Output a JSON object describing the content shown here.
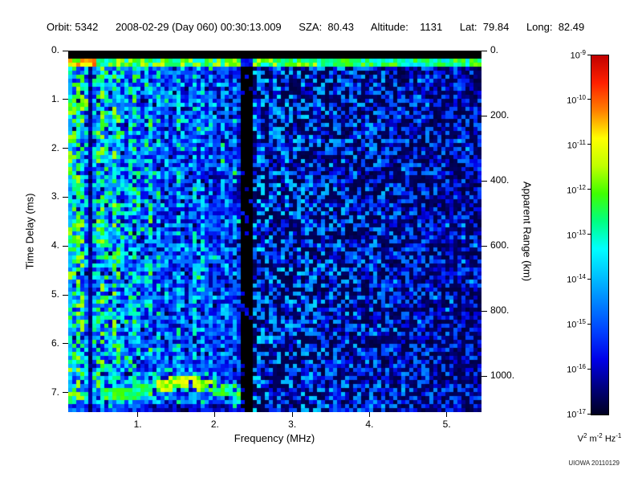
{
  "header": {
    "segments": [
      "Orbit: 5342",
      "2008-02-29 (Day 060) 00:30:13.009",
      "SZA:  80.43",
      "Altitude:    1131",
      "Lat:  79.84",
      "Long:  82.49"
    ]
  },
  "chart_data": {
    "type": "heatmap",
    "title": "",
    "description": "Radar sounder ionogram: spectral density vs frequency (0.1-5.45 MHz) and time delay (0-7.4 ms). Dense blue-cyan noise below ~2.3 MHz, sparse dark-blue speckle on black above 2.5 MHz, bright transmit-pulse line near 0.25 ms across all frequencies, cyan ionospheric echo patch near 0.2 MHz / 1.1 ms, surface reflection trace near 6.8-7.1 ms between 0.5 and 2.3 MHz, black interference gap band near 2.4 MHz, dark column near 0.4 MHz.",
    "xlabel": "Frequency (MHz)",
    "ylabel_left": "Time Delay (ms)",
    "ylabel_right": "Apparent Range (km)",
    "x_range": [
      0.1,
      5.45
    ],
    "x_tick_values": [
      1,
      2,
      3,
      4,
      5
    ],
    "x_tick_labels": [
      "1.",
      "2.",
      "3.",
      "4.",
      "5."
    ],
    "y_range": [
      0,
      7.4
    ],
    "y_tick_values": [
      0,
      1,
      2,
      3,
      4,
      5,
      6,
      7
    ],
    "y_tick_labels": [
      "0.",
      "1.",
      "2.",
      "3.",
      "4.",
      "5.",
      "6.",
      "7."
    ],
    "right_axis": {
      "km_per_ms": 150,
      "tick_values": [
        0,
        200,
        400,
        600,
        800,
        1000
      ],
      "tick_labels": [
        "0.",
        "200.",
        "400.",
        "600.",
        "800.",
        "1000."
      ]
    },
    "colorbar": {
      "scale": "log",
      "top_value": "1e-9",
      "bottom_value": "1e-17",
      "tick_base": "10",
      "tick_exponents": [
        "-9",
        "-10",
        "-11",
        "-12",
        "-13",
        "-14",
        "-15",
        "-16",
        "-17"
      ],
      "unit_parts": [
        [
          "V",
          "2"
        ],
        [
          "m",
          "-2"
        ],
        [
          "Hz",
          "-1"
        ]
      ]
    },
    "colormap": [
      "#000020",
      "#000080",
      "#0000e8",
      "#0040ff",
      "#0080ff",
      "#00c0ff",
      "#00ffff",
      "#00ff80",
      "#40ff00",
      "#c0ff00",
      "#ffff00",
      "#ff8000",
      "#ff2000",
      "#c00000"
    ],
    "features": {
      "transmit_pulse_line": {
        "time_range_ms": [
          0.16,
          0.34
        ]
      },
      "interference_gap_band_mhz": [
        2.33,
        2.47
      ],
      "dark_column_mhz": [
        0.35,
        0.43
      ],
      "ionospheric_echo_patch": {
        "freq_range_mhz": [
          0.12,
          0.34
        ],
        "time_range_ms": [
          0.95,
          1.3
        ]
      },
      "surface_reflection_trace": {
        "freq_range_mhz": [
          0.5,
          2.32
        ],
        "edge_time_ms": 7.05,
        "peak_time_ms": 6.8,
        "peak_freq_mhz": 1.6
      }
    }
  },
  "credit": "UIOWA 20110129"
}
